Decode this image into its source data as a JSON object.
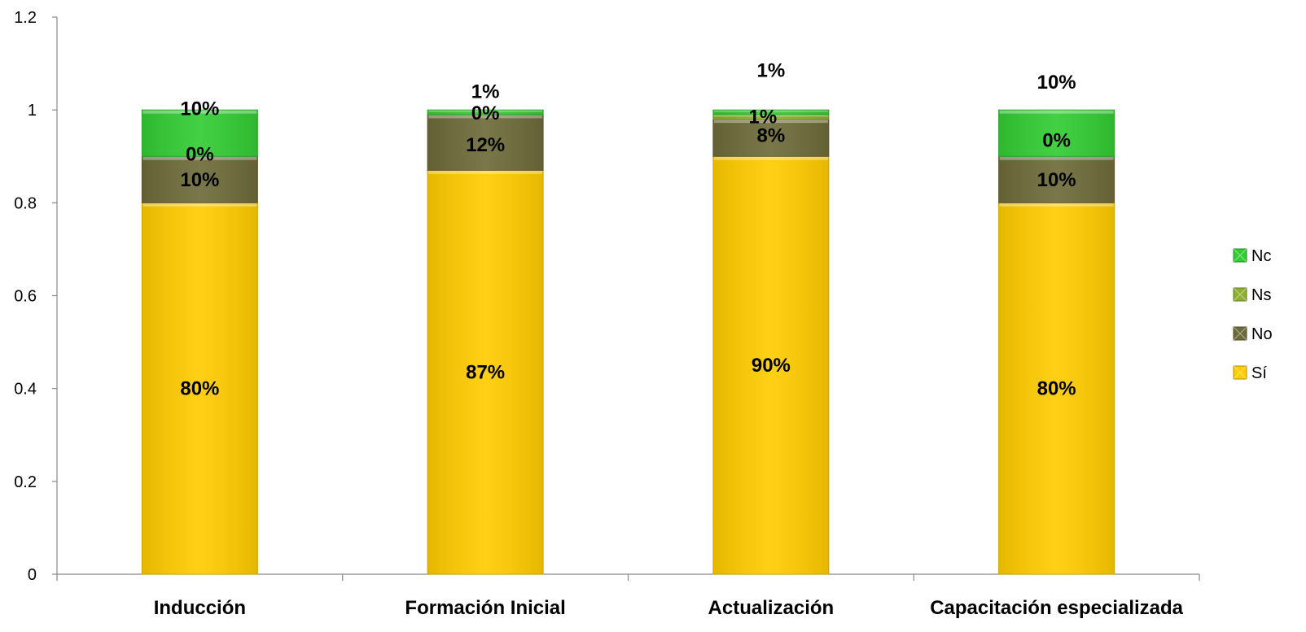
{
  "chart_data": {
    "type": "bar",
    "stacked": true,
    "title": "",
    "xlabel": "",
    "ylabel": "",
    "ylim": [
      0,
      1.2
    ],
    "yticks": [
      "0",
      "0.2",
      "0.4",
      "0.6",
      "0.8",
      "1",
      "1.2"
    ],
    "grid": false,
    "legend_position": "right",
    "categories": [
      "Inducción",
      "Formación Inicial",
      "Actualización",
      "Capacitación especializada"
    ],
    "series": [
      {
        "name": "Sí",
        "color": "#FFCC00",
        "values": [
          0.8,
          0.87,
          0.9,
          0.8
        ],
        "labels": [
          "80%",
          "87%",
          "90%",
          "80%"
        ]
      },
      {
        "name": "No",
        "color": "#6E6B3A",
        "values": [
          0.1,
          0.12,
          0.08,
          0.1
        ],
        "labels": [
          "10%",
          "12%",
          "8%",
          "10%"
        ]
      },
      {
        "name": "Ns",
        "color": "#8DB030",
        "values": [
          0.0,
          0.0,
          0.01,
          0.0
        ],
        "labels": [
          "0%",
          "0%",
          "1%",
          "0%"
        ]
      },
      {
        "name": "Nc",
        "color": "#33CC33",
        "values": [
          0.1,
          0.01,
          0.01,
          0.1
        ],
        "labels": [
          "10%",
          "1%",
          "1%",
          "10%"
        ]
      }
    ]
  }
}
